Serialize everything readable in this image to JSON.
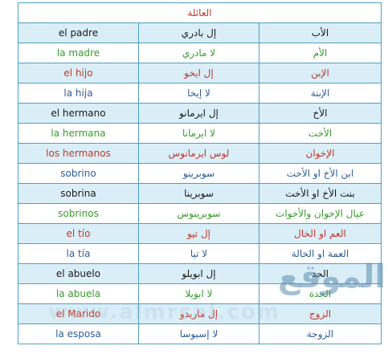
{
  "title": "العائلة",
  "rows": [
    {
      "es": "el padre",
      "pron": "إل بادري",
      "ar": "الأب",
      "color": "#1a1a1a"
    },
    {
      "es": "la madre",
      "pron": "لا مادري",
      "ar": "الأم",
      "color": "#3a9a2e"
    },
    {
      "es": "el hijo",
      "pron": "إل ايخو",
      "ar": "الإبن",
      "color": "#c0392b"
    },
    {
      "es": "la hija",
      "pron": "لا إيخا",
      "ar": "الإبنة",
      "color": "#2e5d9b"
    },
    {
      "es": "el hermano",
      "pron": "إل ايرمانو",
      "ar": "الأخ",
      "color": "#1a1a1a"
    },
    {
      "es": "la hermana",
      "pron": "لا ايرمانا",
      "ar": "الأخت",
      "color": "#3a9a2e"
    },
    {
      "es": "los hermanos",
      "pron": "لوس ايرمانوس",
      "ar": "الإخوان",
      "color": "#c0392b"
    },
    {
      "es": "sobrino",
      "pron": "سوبرينو",
      "ar": "ابن الأخ او الأخت",
      "color": "#2e5d9b"
    },
    {
      "es": "sobrina",
      "pron": "سوبرينا",
      "ar": "بنت الأخ او الأخت",
      "color": "#1a1a1a"
    },
    {
      "es": "sobrinos",
      "pron": "سوبرينوس",
      "ar": "عيال الإخوان والأخوات",
      "color": "#3a9a2e"
    },
    {
      "es": "el tío",
      "pron": "إل تيو",
      "ar": "العم او الخال",
      "color": "#c0392b"
    },
    {
      "es": "la tía",
      "pron": "لا تيا",
      "ar": "العمة او الخالة",
      "color": "#2e5d9b"
    },
    {
      "es": "el abuelo",
      "pron": "إل ابويلو",
      "ar": "الجد",
      "color": "#1a1a1a"
    },
    {
      "es": "la abuela",
      "pron": "لا ابويلا",
      "ar": "الجدة",
      "color": "#3a9a2e"
    },
    {
      "es": "el Marido",
      "pron": "إل ماريدو",
      "ar": "الزوج",
      "color": "#c0392b"
    },
    {
      "es": "la esposa",
      "pron": "لا إسبوسا",
      "ar": "الزوجة",
      "color": "#2e5d9b"
    }
  ],
  "watermark": "الموقع",
  "watermark_url": "www.almrsal.com",
  "colors": {
    "border": "#4f9fc2",
    "stripe": "#daeef8",
    "title": "#c0392b"
  }
}
